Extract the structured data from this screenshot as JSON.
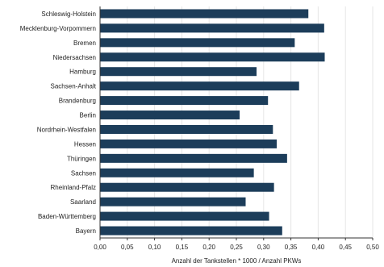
{
  "chart_data": {
    "type": "bar",
    "orientation": "horizontal",
    "categories": [
      "Schleswig-Holstein",
      "Mecklenburg-Vorpommern",
      "Bremen",
      "Niedersachsen",
      "Hamburg",
      "Sachsen-Anhalt",
      "Brandenburg",
      "Berlin",
      "Nordrhein-Westfalen",
      "Hessen",
      "Thüringen",
      "Sachsen",
      "Rheinland-Pfalz",
      "Saarland",
      "Baden-Württemberg",
      "Bayern"
    ],
    "values": [
      0.382,
      0.411,
      0.357,
      0.412,
      0.287,
      0.365,
      0.308,
      0.256,
      0.317,
      0.324,
      0.343,
      0.282,
      0.319,
      0.267,
      0.31,
      0.334
    ],
    "xlabel": "Anzahl der Tankstellen * 1000 / Anzahl PKWs",
    "xlim": [
      0,
      0.5
    ],
    "xticks": [
      "0,00",
      "0,05",
      "0,10",
      "0,15",
      "0,20",
      "0,25",
      "0,30",
      "0,35",
      "0,40",
      "0,45",
      "0,50"
    ],
    "grid": "vertical",
    "bar_color": "#1c3d5a"
  }
}
